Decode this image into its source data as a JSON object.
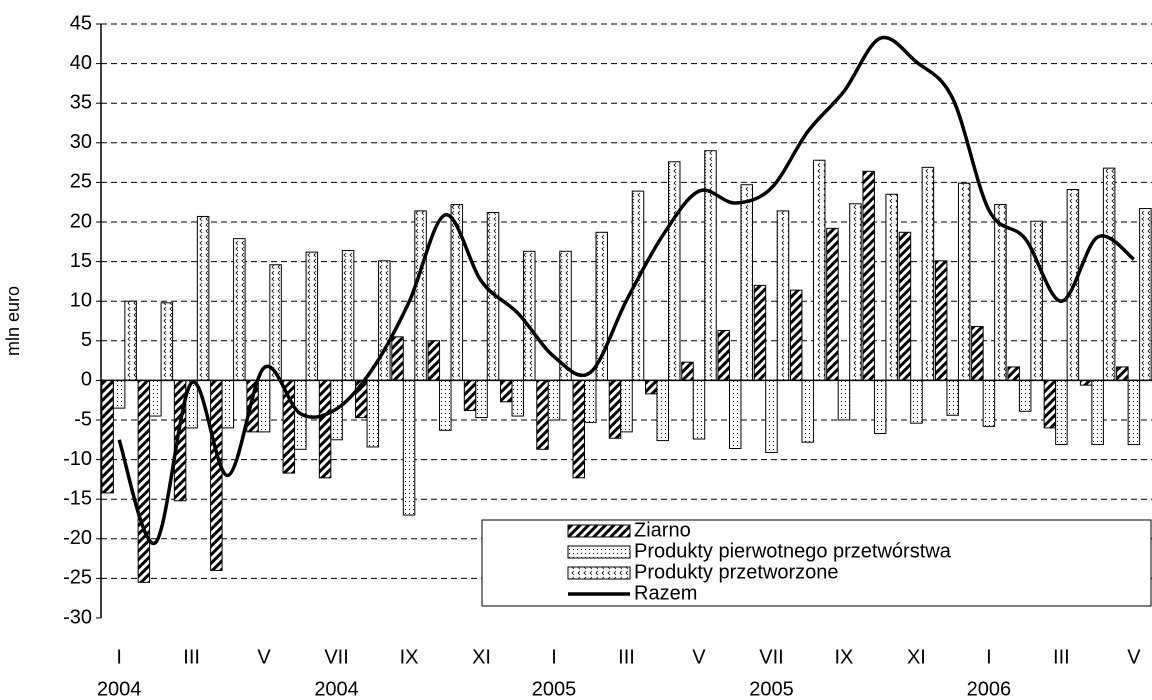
{
  "chart_data": {
    "type": "bar",
    "y_label": "mln euro",
    "categories": [
      "I",
      null,
      "III",
      null,
      "V",
      null,
      "VII",
      null,
      "IX",
      null,
      "XI",
      null,
      "I",
      null,
      "III",
      null,
      "V",
      null,
      "VII",
      null,
      "IX",
      null,
      "XI",
      null,
      "I",
      null,
      "III",
      null,
      "V"
    ],
    "category_groups": [
      "2004",
      null,
      null,
      null,
      null,
      null,
      "2004",
      null,
      null,
      null,
      null,
      null,
      "2005",
      null,
      null,
      null,
      null,
      null,
      "2005",
      null,
      null,
      null,
      null,
      null,
      "2006",
      null,
      null,
      null,
      null
    ],
    "series": [
      {
        "name": "Ziarno",
        "color": "#000000",
        "values": [
          -14.2,
          -25.5,
          -15.2,
          -24,
          -6.5,
          -11.7,
          -12.3,
          -4.7,
          5.5,
          5,
          -3.8,
          -2.7,
          -8.7,
          -12.3,
          -7.3,
          -1.7,
          2.3,
          6.3,
          12,
          11.4,
          19.2,
          26.4,
          18.7,
          15.1,
          6.8,
          1.7,
          -6,
          -0.6,
          1.7
        ]
      },
      {
        "name": "Produkty pierwotnego przetwórstwa",
        "color": "#000000",
        "values": [
          -3.5,
          -4.5,
          -6,
          -6,
          -6.5,
          -8.7,
          -7.5,
          -8.4,
          -17,
          -6.3,
          -4.7,
          -4.5,
          -5,
          -5.3,
          -6.5,
          -7.6,
          -7.4,
          -8.6,
          -9.1,
          -7.8,
          -5,
          -6.7,
          -5.4,
          -4.4,
          -5.8,
          -3.9,
          -8.1,
          -8.1,
          -8.1
        ]
      },
      {
        "name": "Produkty przetworzone",
        "color": "#000000",
        "values": [
          10,
          9.8,
          20.7,
          17.9,
          14.6,
          16.2,
          16.4,
          15.1,
          21.4,
          22.2,
          21.2,
          16.3,
          16.3,
          18.7,
          23.9,
          27.6,
          29,
          24.7,
          21.4,
          27.8,
          22.3,
          23.5,
          26.9,
          24.9,
          22.2,
          20.1,
          24.1,
          26.8,
          21.7
        ]
      },
      {
        "name": "Razem",
        "type": "line",
        "color": "#000000",
        "values": [
          -7.5,
          -20.5,
          -0.3,
          -12,
          1.6,
          -4.2,
          -3.6,
          1.5,
          9.9,
          20.9,
          12.5,
          8.5,
          3,
          1,
          10.1,
          18.3,
          23.9,
          22.4,
          24.3,
          31.4,
          36.5,
          43.2,
          40.2,
          35.6,
          21.5,
          17.9,
          10,
          18.1,
          15.3
        ]
      }
    ],
    "ylim": [
      -30,
      45
    ],
    "yticks": [
      -30,
      -25,
      -20,
      -15,
      -10,
      -5,
      0,
      5,
      10,
      15,
      20,
      25,
      30,
      35,
      40,
      45
    ],
    "grid": true,
    "legend": "lower right"
  }
}
